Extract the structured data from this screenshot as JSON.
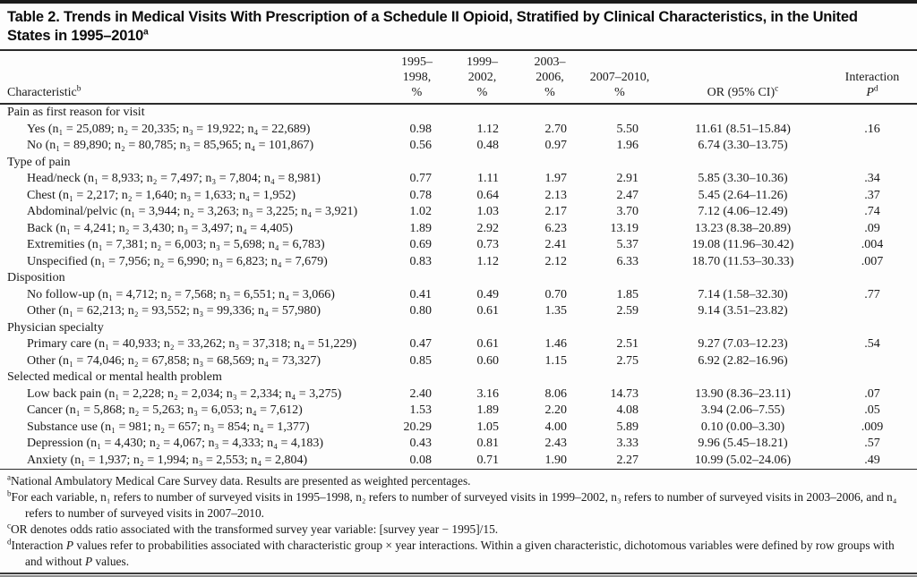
{
  "title": {
    "text": "Table 2. Trends in Medical Visits With Prescription of a Schedule II Opioid, Stratified by Clinical Characteristics, in the United\nStates in 1995–2010",
    "sup": "a"
  },
  "table": {
    "columns": {
      "characteristic": {
        "label": "Characteristic",
        "sup": "b"
      },
      "periods": [
        {
          "label": "1995–1998,",
          "sub": "%"
        },
        {
          "label": "1999–2002,",
          "sub": "%"
        },
        {
          "label": "2003–2006,",
          "sub": "%"
        },
        {
          "label": "2007–2010,",
          "sub": "%"
        }
      ],
      "or": {
        "label": "OR (95% CI)",
        "sup": "c"
      },
      "interaction": {
        "line1": "Interaction",
        "p": "P",
        "sup": "d"
      }
    },
    "sections": [
      {
        "header": "Pain as first reason for visit",
        "rows": [
          {
            "label": "Yes (n₁ = 25,089; n₂ = 20,335; n₃ = 19,922; n₄ = 22,689)",
            "values": [
              "0.98",
              "1.12",
              "2.70",
              "5.50"
            ],
            "or": "11.61 (8.51–15.84)",
            "p": ".16"
          },
          {
            "label": "No (n₁ = 89,890; n₂ = 80,785; n₃ = 85,965; n₄ = 101,867)",
            "values": [
              "0.56",
              "0.48",
              "0.97",
              "1.96"
            ],
            "or": "6.74 (3.30–13.75)",
            "p": ""
          }
        ]
      },
      {
        "header": "Type of pain",
        "rows": [
          {
            "label": "Head/neck (n₁ = 8,933; n₂ = 7,497; n₃ = 7,804; n₄ = 8,981)",
            "values": [
              "0.77",
              "1.11",
              "1.97",
              "2.91"
            ],
            "or": "5.85 (3.30–10.36)",
            "p": ".34"
          },
          {
            "label": "Chest (n₁ = 2,217; n₂ = 1,640; n₃ = 1,633; n₄ = 1,952)",
            "values": [
              "0.78",
              "0.64",
              "2.13",
              "2.47"
            ],
            "or": "5.45 (2.64–11.26)",
            "p": ".37"
          },
          {
            "label": "Abdominal/pelvic (n₁ = 3,944; n₂ = 3,263; n₃ = 3,225; n₄ = 3,921)",
            "values": [
              "1.02",
              "1.03",
              "2.17",
              "3.70"
            ],
            "or": "7.12 (4.06–12.49)",
            "p": ".74"
          },
          {
            "label": "Back (n₁ = 4,241; n₂ = 3,430; n₃ = 3,497; n₄ = 4,405)",
            "values": [
              "1.89",
              "2.92",
              "6.23",
              "13.19"
            ],
            "or": "13.23 (8.38–20.89)",
            "p": ".09"
          },
          {
            "label": "Extremities (n₁ = 7,381; n₂ = 6,003; n₃ = 5,698; n₄ = 6,783)",
            "values": [
              "0.69",
              "0.73",
              "2.41",
              "5.37"
            ],
            "or": "19.08 (11.96–30.42)",
            "p": ".004"
          },
          {
            "label": "Unspecified (n₁ = 7,956; n₂ = 6,990; n₃ = 6,823; n₄ = 7,679)",
            "values": [
              "0.83",
              "1.12",
              "2.12",
              "6.33"
            ],
            "or": "18.70 (11.53–30.33)",
            "p": ".007"
          }
        ]
      },
      {
        "header": "Disposition",
        "rows": [
          {
            "label": "No follow-up (n₁ = 4,712; n₂ = 7,568; n₃ = 6,551; n₄ = 3,066)",
            "values": [
              "0.41",
              "0.49",
              "0.70",
              "1.85"
            ],
            "or": "7.14 (1.58–32.30)",
            "p": ".77"
          },
          {
            "label": "Other (n₁ = 62,213; n₂ = 93,552; n₃ = 99,336; n₄ = 57,980)",
            "values": [
              "0.80",
              "0.61",
              "1.35",
              "2.59"
            ],
            "or": "9.14 (3.51–23.82)",
            "p": ""
          }
        ]
      },
      {
        "header": "Physician specialty",
        "rows": [
          {
            "label": "Primary care (n₁ = 40,933; n₂ = 33,262; n₃ = 37,318; n₄ = 51,229)",
            "values": [
              "0.47",
              "0.61",
              "1.46",
              "2.51"
            ],
            "or": "9.27 (7.03–12.23)",
            "p": ".54"
          },
          {
            "label": "Other (n₁ = 74,046; n₂ = 67,858; n₃ = 68,569; n₄ = 73,327)",
            "values": [
              "0.85",
              "0.60",
              "1.15",
              "2.75"
            ],
            "or": "6.92 (2.82–16.96)",
            "p": ""
          }
        ]
      },
      {
        "header": "Selected medical or mental health problem",
        "rows": [
          {
            "label": "Low back pain (n₁ = 2,228; n₂ = 2,034; n₃ = 2,334; n₄ = 3,275)",
            "values": [
              "2.40",
              "3.16",
              "8.06",
              "14.73"
            ],
            "or": "13.90 (8.36–23.11)",
            "p": ".07"
          },
          {
            "label": "Cancer (n₁ = 5,868; n₂ = 5,263; n₃ = 6,053; n₄ = 7,612)",
            "values": [
              "1.53",
              "1.89",
              "2.20",
              "4.08"
            ],
            "or": "3.94 (2.06–7.55)",
            "p": ".05"
          },
          {
            "label": "Substance use (n₁ = 981; n₂ = 657; n₃ = 854; n₄ = 1,377)",
            "values": [
              "20.29",
              "1.05",
              "4.00",
              "5.89"
            ],
            "or": "0.10 (0.00–3.30)",
            "p": ".009"
          },
          {
            "label": "Depression (n₁ = 4,430; n₂ = 4,067; n₃ = 4,333; n₄ = 4,183)",
            "values": [
              "0.43",
              "0.81",
              "2.43",
              "3.33"
            ],
            "or": "9.96 (5.45–18.21)",
            "p": ".57"
          },
          {
            "label": "Anxiety (n₁ = 1,937; n₂ = 1,994; n₃ = 2,553; n₄ = 2,804)",
            "values": [
              "0.08",
              "0.71",
              "1.90",
              "2.27"
            ],
            "or": "10.99 (5.02–24.06)",
            "p": ".49"
          }
        ]
      }
    ]
  },
  "footnotes": [
    {
      "sup": "a",
      "segments": [
        {
          "t": "National Ambulatory Medical Care Survey data. Results are presented as weighted percentages."
        }
      ]
    },
    {
      "sup": "b",
      "segments": [
        {
          "t": "For each variable, n₁ refers to number of surveyed visits in 1995–1998, n₂ refers to number of surveyed visits in 1999–2002, n₃ refers to number of surveyed visits in 2003–2006, and n₄ refers to number of surveyed visits in 2007–2010."
        }
      ]
    },
    {
      "sup": "c",
      "segments": [
        {
          "t": "OR denotes odds ratio associated with the transformed survey year variable: [survey year − 1995]/15."
        }
      ]
    },
    {
      "sup": "d",
      "segments": [
        {
          "t": "Interaction "
        },
        {
          "t": "P",
          "i": true
        },
        {
          "t": " values refer to probabilities associated with characteristic group × year interactions. Within a given characteristic, dichotomous variables were defined by row groups with and without "
        },
        {
          "t": "P",
          "i": true
        },
        {
          "t": " values."
        }
      ]
    }
  ]
}
